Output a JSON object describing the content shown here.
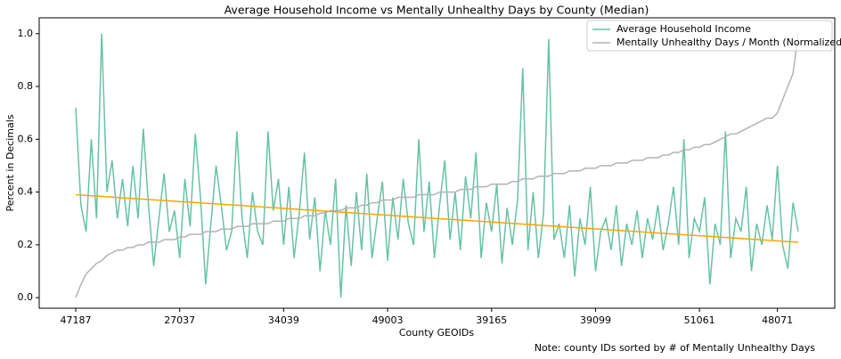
{
  "chart_data": {
    "type": "line",
    "title": "Average Household Income vs Mentally Unhealthy Days by County (Median)",
    "x_label": "County GEOIDs",
    "y_label": "Percent in Decimals",
    "note": "Note: county IDs sorted by # of Mentally Unhealthy Days",
    "legend": "upper right",
    "categories": [
      "47187",
      null,
      null,
      null,
      null,
      null,
      null,
      null,
      null,
      null,
      null,
      null,
      null,
      null,
      null,
      null,
      null,
      null,
      null,
      null,
      "27037",
      null,
      null,
      null,
      null,
      null,
      null,
      null,
      null,
      null,
      null,
      null,
      null,
      null,
      null,
      null,
      null,
      null,
      null,
      null,
      "34039",
      null,
      null,
      null,
      null,
      null,
      null,
      null,
      null,
      null,
      null,
      null,
      null,
      null,
      null,
      null,
      null,
      null,
      null,
      null,
      "49003",
      null,
      null,
      null,
      null,
      null,
      null,
      null,
      null,
      null,
      null,
      null,
      null,
      null,
      null,
      null,
      null,
      null,
      null,
      null,
      "39165",
      null,
      null,
      null,
      null,
      null,
      null,
      null,
      null,
      null,
      null,
      null,
      null,
      null,
      null,
      null,
      null,
      null,
      null,
      null,
      "39099",
      null,
      null,
      null,
      null,
      null,
      null,
      null,
      null,
      null,
      null,
      null,
      null,
      null,
      null,
      null,
      null,
      null,
      null,
      null,
      "51061",
      null,
      null,
      null,
      null,
      null,
      null,
      null,
      null,
      null,
      null,
      null,
      null,
      null,
      null,
      "48071",
      null,
      null,
      null,
      null
    ],
    "series": [
      {
        "name": "Average Household Income",
        "color": "#66c2a5",
        "values": [
          0.72,
          0.35,
          0.25,
          0.6,
          0.3,
          1.0,
          0.4,
          0.52,
          0.3,
          0.45,
          0.27,
          0.5,
          0.3,
          0.64,
          0.35,
          0.12,
          0.3,
          0.47,
          0.25,
          0.33,
          0.15,
          0.45,
          0.27,
          0.62,
          0.38,
          0.05,
          0.28,
          0.5,
          0.35,
          0.18,
          0.25,
          0.63,
          0.3,
          0.15,
          0.4,
          0.25,
          0.2,
          0.63,
          0.33,
          0.45,
          0.2,
          0.42,
          0.15,
          0.32,
          0.55,
          0.22,
          0.38,
          0.1,
          0.33,
          0.2,
          0.45,
          0.0,
          0.35,
          0.12,
          0.4,
          0.18,
          0.47,
          0.15,
          0.3,
          0.44,
          0.14,
          0.38,
          0.22,
          0.45,
          0.28,
          0.2,
          0.6,
          0.25,
          0.44,
          0.15,
          0.35,
          0.52,
          0.22,
          0.4,
          0.18,
          0.46,
          0.3,
          0.55,
          0.15,
          0.36,
          0.25,
          0.43,
          0.13,
          0.34,
          0.2,
          0.37,
          0.87,
          0.18,
          0.4,
          0.15,
          0.32,
          0.98,
          0.22,
          0.28,
          0.15,
          0.35,
          0.08,
          0.3,
          0.2,
          0.42,
          0.1,
          0.25,
          0.3,
          0.18,
          0.35,
          0.12,
          0.28,
          0.2,
          0.33,
          0.15,
          0.3,
          0.22,
          0.35,
          0.18,
          0.28,
          0.42,
          0.2,
          0.6,
          0.15,
          0.3,
          0.25,
          0.38,
          0.05,
          0.28,
          0.2,
          0.63,
          0.15,
          0.3,
          0.25,
          0.42,
          0.1,
          0.28,
          0.2,
          0.35,
          0.22,
          0.5,
          0.2,
          0.11,
          0.36,
          0.25
        ]
      },
      {
        "name": "Mentally Unhealthy Days / Month (Normalized)",
        "color": "#b3b3b3",
        "values": [
          0,
          0.05,
          0.09,
          0.11,
          0.13,
          0.14,
          0.16,
          0.17,
          0.18,
          0.18,
          0.19,
          0.19,
          0.2,
          0.2,
          0.21,
          0.21,
          0.21,
          0.22,
          0.22,
          0.22,
          0.23,
          0.23,
          0.24,
          0.24,
          0.24,
          0.25,
          0.25,
          0.25,
          0.26,
          0.26,
          0.26,
          0.27,
          0.27,
          0.27,
          0.28,
          0.28,
          0.28,
          0.28,
          0.29,
          0.29,
          0.29,
          0.3,
          0.3,
          0.3,
          0.31,
          0.31,
          0.31,
          0.32,
          0.32,
          0.33,
          0.33,
          0.33,
          0.34,
          0.34,
          0.34,
          0.35,
          0.35,
          0.36,
          0.36,
          0.37,
          0.37,
          0.37,
          0.38,
          0.38,
          0.38,
          0.38,
          0.39,
          0.39,
          0.39,
          0.39,
          0.4,
          0.4,
          0.4,
          0.4,
          0.41,
          0.41,
          0.41,
          0.42,
          0.42,
          0.42,
          0.43,
          0.43,
          0.43,
          0.43,
          0.44,
          0.44,
          0.45,
          0.45,
          0.45,
          0.46,
          0.46,
          0.46,
          0.47,
          0.47,
          0.47,
          0.48,
          0.48,
          0.48,
          0.49,
          0.49,
          0.49,
          0.5,
          0.5,
          0.5,
          0.51,
          0.51,
          0.51,
          0.52,
          0.52,
          0.52,
          0.53,
          0.53,
          0.53,
          0.54,
          0.54,
          0.55,
          0.55,
          0.56,
          0.56,
          0.57,
          0.57,
          0.58,
          0.58,
          0.59,
          0.6,
          0.61,
          0.62,
          0.62,
          0.63,
          0.64,
          0.65,
          0.66,
          0.67,
          0.68,
          0.68,
          0.7,
          0.75,
          0.8,
          0.85,
          1.0
        ]
      }
    ],
    "trend": {
      "color": "#ffa500",
      "start": 0.39,
      "end": 0.21
    },
    "ylim": [
      -0.04,
      1.06
    ],
    "yticks": [
      {
        "value": 0,
        "label": "0.0"
      },
      0.2,
      0.4,
      0.6,
      0.8,
      {
        "value": 1,
        "label": "1.0"
      }
    ]
  }
}
